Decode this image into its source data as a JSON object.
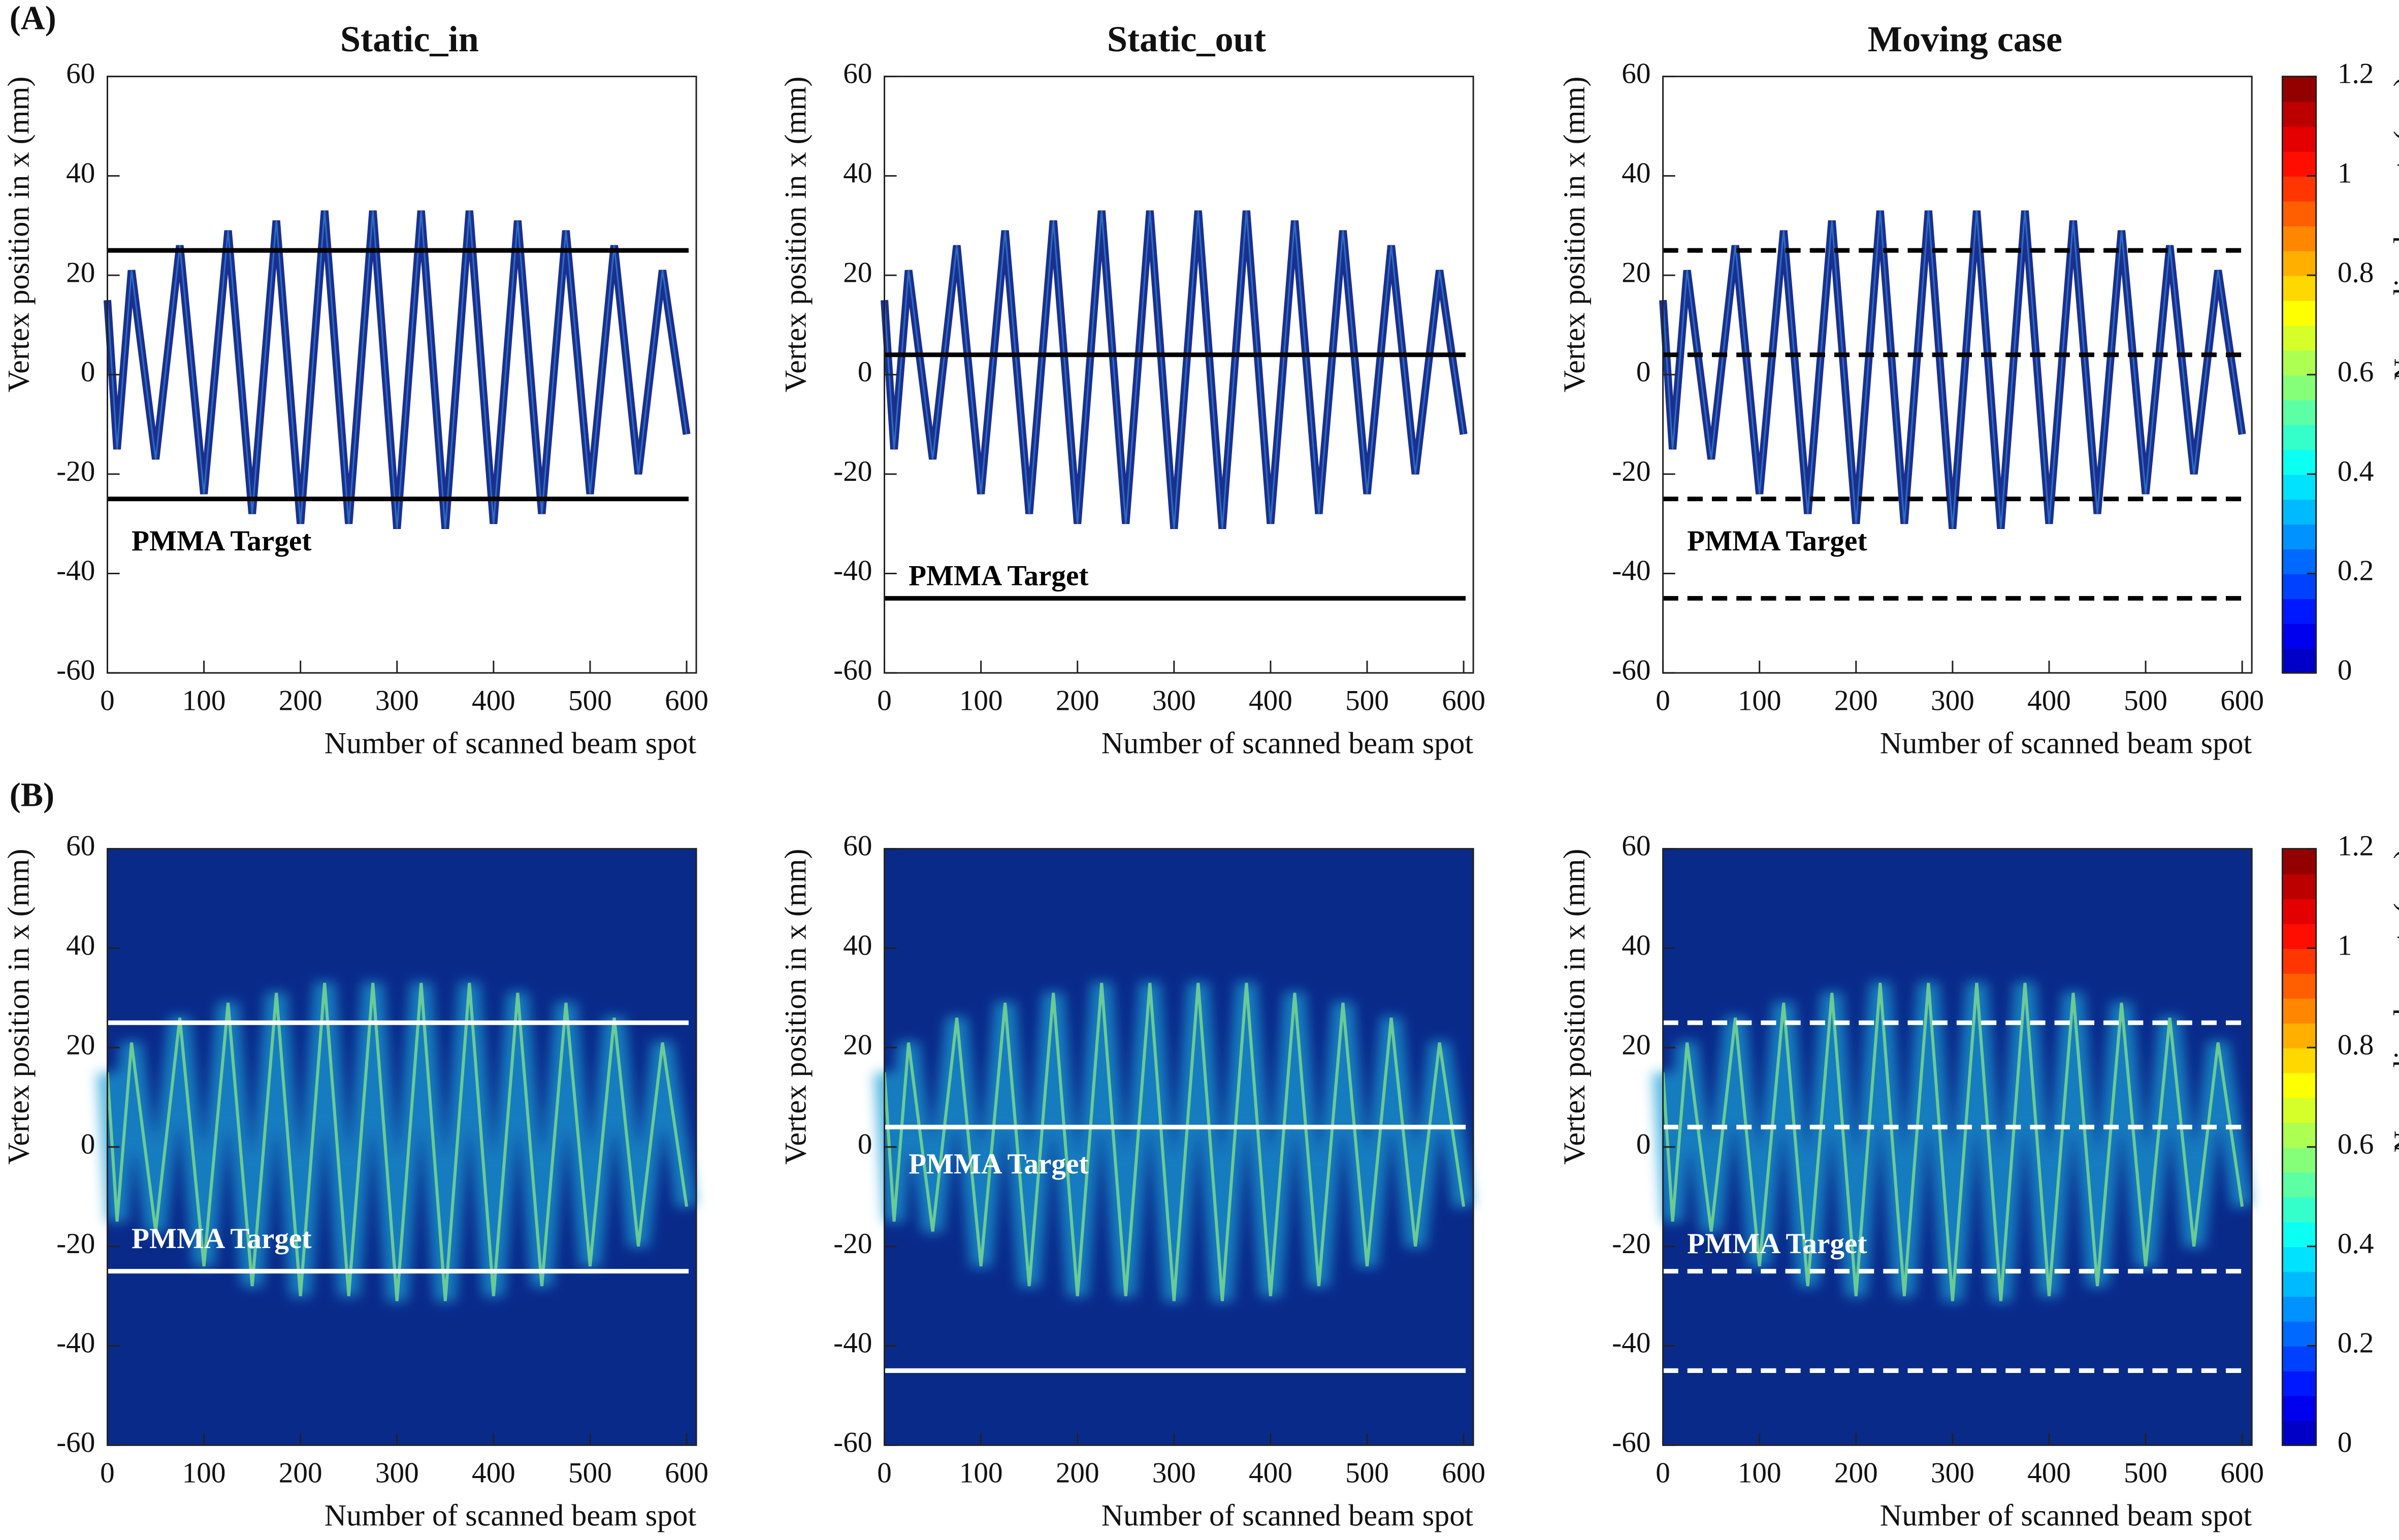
{
  "panels": [
    "(A)",
    "(B)"
  ],
  "chart_data": [
    {
      "type": "heatmap",
      "title": "Static_in",
      "xlabel": "Number of scanned beam spot",
      "ylabel": "Vertex position in x (mm)",
      "x": [
        0,
        10,
        25,
        50,
        75,
        100,
        125,
        150,
        175,
        200,
        225,
        250,
        275,
        300,
        325,
        350,
        375,
        400,
        425,
        450,
        475,
        500,
        525,
        550,
        575,
        600
      ],
      "values": [
        15,
        -15,
        21,
        -17,
        26,
        -24,
        29,
        -28,
        31,
        -30,
        33,
        -30,
        33,
        -31,
        33,
        -31,
        33,
        -30,
        31,
        -28,
        29,
        -24,
        26,
        -20,
        21,
        -12
      ],
      "xlim": [
        0,
        610
      ],
      "ylim": [
        -60,
        60
      ],
      "xticks": [
        0,
        100,
        200,
        300,
        400,
        500,
        600
      ],
      "yticks": [
        -60,
        -40,
        -20,
        0,
        20,
        40,
        60
      ],
      "hlines": [
        25,
        -25
      ],
      "line_style": "solid",
      "line_color": "#000000",
      "background": "#ffffff",
      "annotation": {
        "text": "PMMA Target",
        "x": 25,
        "y": -34
      }
    },
    {
      "type": "heatmap",
      "title": "Static_out",
      "xlabel": "Number of scanned beam spot",
      "ylabel": "Vertex position in x (mm)",
      "x": [
        0,
        10,
        25,
        50,
        75,
        100,
        125,
        150,
        175,
        200,
        225,
        250,
        275,
        300,
        325,
        350,
        375,
        400,
        425,
        450,
        475,
        500,
        525,
        550,
        575,
        600
      ],
      "values": [
        15,
        -15,
        21,
        -17,
        26,
        -24,
        29,
        -28,
        31,
        -30,
        33,
        -30,
        33,
        -31,
        33,
        -31,
        33,
        -30,
        31,
        -28,
        29,
        -24,
        26,
        -20,
        21,
        -12
      ],
      "xlim": [
        0,
        610
      ],
      "ylim": [
        -60,
        60
      ],
      "xticks": [
        0,
        100,
        200,
        300,
        400,
        500,
        600
      ],
      "yticks": [
        -60,
        -40,
        -20,
        0,
        20,
        40,
        60
      ],
      "hlines": [
        4,
        -45
      ],
      "line_style": "solid",
      "line_color": "#000000",
      "background": "#ffffff",
      "annotation": {
        "text": "PMMA Target",
        "x": 25,
        "y": -41
      }
    },
    {
      "type": "heatmap",
      "title": "Moving case",
      "xlabel": "Number of scanned beam spot",
      "ylabel": "Vertex position in x (mm)",
      "x": [
        0,
        10,
        25,
        50,
        75,
        100,
        125,
        150,
        175,
        200,
        225,
        250,
        275,
        300,
        325,
        350,
        375,
        400,
        425,
        450,
        475,
        500,
        525,
        550,
        575,
        600
      ],
      "values": [
        15,
        -15,
        21,
        -17,
        26,
        -24,
        29,
        -28,
        31,
        -30,
        33,
        -30,
        33,
        -31,
        33,
        -31,
        33,
        -30,
        31,
        -28,
        29,
        -24,
        26,
        -20,
        21,
        -12
      ],
      "xlim": [
        0,
        610
      ],
      "ylim": [
        -60,
        60
      ],
      "xticks": [
        0,
        100,
        200,
        300,
        400,
        500,
        600
      ],
      "yticks": [
        -60,
        -40,
        -20,
        0,
        20,
        40,
        60
      ],
      "hlines": [
        25,
        4,
        -25,
        -45
      ],
      "line_style": "dashed",
      "line_color": "#000000",
      "background": "#ffffff",
      "annotation": {
        "text": "PMMA Target",
        "x": 25,
        "y": -34
      },
      "colorbar": {
        "label": "Normalized counts (a.u.)",
        "lim": [
          0,
          1.2
        ],
        "ticks": [
          0,
          0.2,
          0.4,
          0.6,
          0.8,
          1,
          1.2
        ],
        "colormap": "jet"
      }
    },
    {
      "type": "heatmap",
      "xlabel": "Number of scanned beam spot",
      "ylabel": "Vertex position in x (mm)",
      "x": [
        0,
        10,
        25,
        50,
        75,
        100,
        125,
        150,
        175,
        200,
        225,
        250,
        275,
        300,
        325,
        350,
        375,
        400,
        425,
        450,
        475,
        500,
        525,
        550,
        575,
        600
      ],
      "values": [
        15,
        -15,
        21,
        -17,
        26,
        -24,
        29,
        -28,
        31,
        -30,
        33,
        -30,
        33,
        -31,
        33,
        -31,
        33,
        -30,
        31,
        -28,
        29,
        -24,
        26,
        -20,
        21,
        -12
      ],
      "xlim": [
        0,
        610
      ],
      "ylim": [
        -60,
        60
      ],
      "xticks": [
        0,
        100,
        200,
        300,
        400,
        500,
        600
      ],
      "yticks": [
        -60,
        -40,
        -20,
        0,
        20,
        40,
        60
      ],
      "hlines": [
        25,
        -25
      ],
      "line_style": "solid",
      "line_color": "#ffffff",
      "background": "#0a2a8a",
      "annotation": {
        "text": "PMMA Target",
        "x": 25,
        "y": -19
      }
    },
    {
      "type": "heatmap",
      "xlabel": "Number of scanned beam spot",
      "ylabel": "Vertex position in x (mm)",
      "x": [
        0,
        10,
        25,
        50,
        75,
        100,
        125,
        150,
        175,
        200,
        225,
        250,
        275,
        300,
        325,
        350,
        375,
        400,
        425,
        450,
        475,
        500,
        525,
        550,
        575,
        600
      ],
      "values": [
        15,
        -15,
        21,
        -17,
        26,
        -24,
        29,
        -28,
        31,
        -30,
        33,
        -30,
        33,
        -31,
        33,
        -31,
        33,
        -30,
        31,
        -28,
        29,
        -24,
        26,
        -20,
        21,
        -12
      ],
      "xlim": [
        0,
        610
      ],
      "ylim": [
        -60,
        60
      ],
      "xticks": [
        0,
        100,
        200,
        300,
        400,
        500,
        600
      ],
      "yticks": [
        -60,
        -40,
        -20,
        0,
        20,
        40,
        60
      ],
      "hlines": [
        4,
        -45
      ],
      "line_style": "solid",
      "line_color": "#ffffff",
      "background": "#0a2a8a",
      "annotation": {
        "text": "PMMA Target",
        "x": 25,
        "y": -4
      }
    },
    {
      "type": "heatmap",
      "xlabel": "Number of scanned beam spot",
      "ylabel": "Vertex position in x (mm)",
      "x": [
        0,
        10,
        25,
        50,
        75,
        100,
        125,
        150,
        175,
        200,
        225,
        250,
        275,
        300,
        325,
        350,
        375,
        400,
        425,
        450,
        475,
        500,
        525,
        550,
        575,
        600
      ],
      "values": [
        15,
        -15,
        21,
        -17,
        26,
        -24,
        29,
        -28,
        31,
        -30,
        33,
        -30,
        33,
        -31,
        33,
        -31,
        33,
        -30,
        31,
        -28,
        29,
        -24,
        26,
        -20,
        21,
        -12
      ],
      "xlim": [
        0,
        610
      ],
      "ylim": [
        -60,
        60
      ],
      "xticks": [
        0,
        100,
        200,
        300,
        400,
        500,
        600
      ],
      "yticks": [
        -60,
        -40,
        -20,
        0,
        20,
        40,
        60
      ],
      "hlines": [
        25,
        4,
        -25,
        -45
      ],
      "line_style": "dashed",
      "line_color": "#ffffff",
      "background": "#0a2a8a",
      "annotation": {
        "text": "PMMA Target",
        "x": 25,
        "y": -20
      },
      "colorbar": {
        "label": "Normalized counts (a.u.)",
        "lim": [
          0,
          1.2
        ],
        "ticks": [
          0,
          0.2,
          0.4,
          0.6,
          0.8,
          1,
          1.2
        ],
        "colormap": "jet"
      }
    }
  ]
}
